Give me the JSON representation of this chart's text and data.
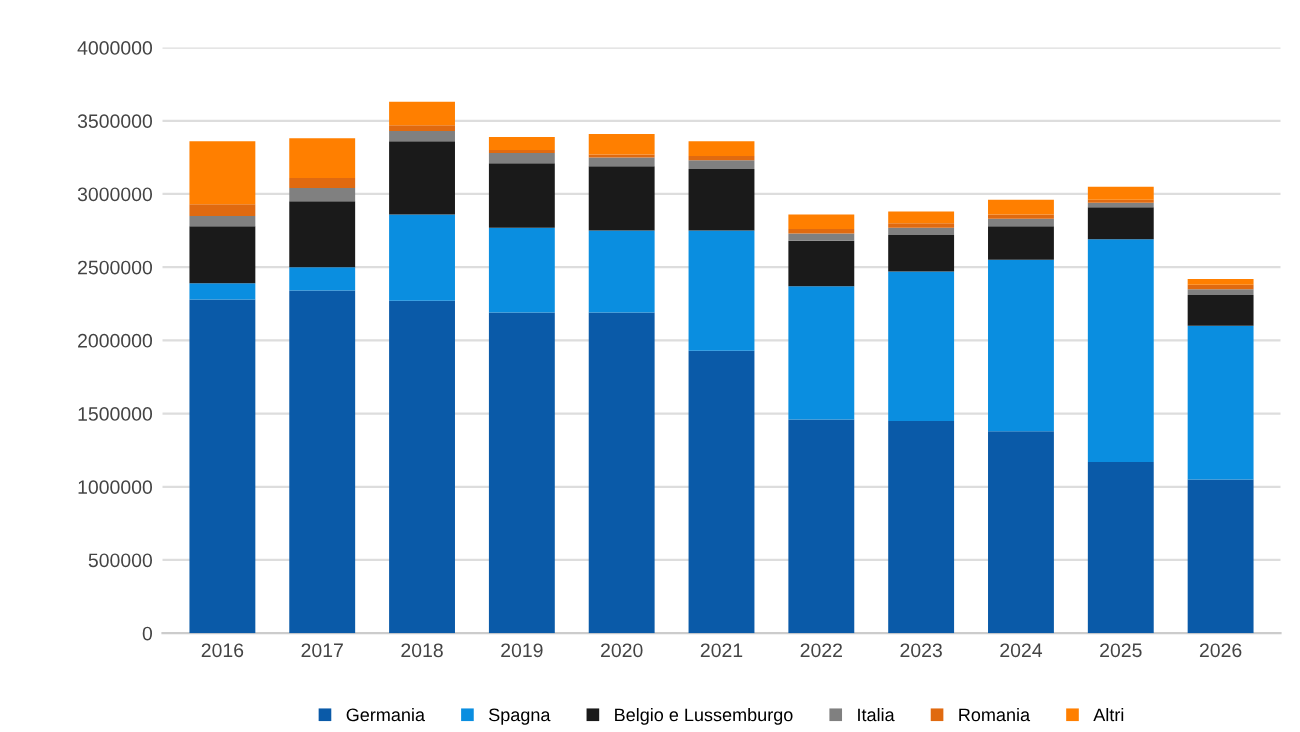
{
  "chart_data": {
    "type": "bar",
    "stacked": true,
    "categories": [
      "2016",
      "2017",
      "2018",
      "2019",
      "2020",
      "2021",
      "2022",
      "2023",
      "2024",
      "2025",
      "2026"
    ],
    "series": [
      {
        "name": "Germania",
        "color": "#0a5aa8",
        "values": [
          2280000,
          2340000,
          2270000,
          2190000,
          2190000,
          1930000,
          1460000,
          1450000,
          1380000,
          1170000,
          1050000
        ]
      },
      {
        "name": "Spagna",
        "color": "#0a8ee0",
        "values": [
          110000,
          160000,
          590000,
          580000,
          560000,
          820000,
          910000,
          1020000,
          1170000,
          1520000,
          1050000
        ]
      },
      {
        "name": "Belgio e Lussemburgo",
        "color": "#1a1a1a",
        "values": [
          390000,
          450000,
          500000,
          440000,
          440000,
          420000,
          310000,
          250000,
          230000,
          220000,
          210000
        ]
      },
      {
        "name": "Italia",
        "color": "#808080",
        "values": [
          70000,
          90000,
          70000,
          70000,
          60000,
          60000,
          50000,
          50000,
          50000,
          30000,
          40000
        ]
      },
      {
        "name": "Romania",
        "color": "#e06a10",
        "values": [
          80000,
          70000,
          40000,
          20000,
          20000,
          30000,
          30000,
          30000,
          30000,
          20000,
          30000
        ]
      },
      {
        "name": "Altri",
        "color": "#ff7f00",
        "values": [
          430000,
          270000,
          160000,
          90000,
          140000,
          100000,
          100000,
          80000,
          100000,
          90000,
          40000
        ]
      }
    ],
    "ylim": [
      0,
      4000000
    ],
    "yticks": [
      0,
      500000,
      1000000,
      1500000,
      2000000,
      2500000,
      3000000,
      3500000,
      4000000
    ],
    "grid": "y",
    "legend": "bottom"
  }
}
